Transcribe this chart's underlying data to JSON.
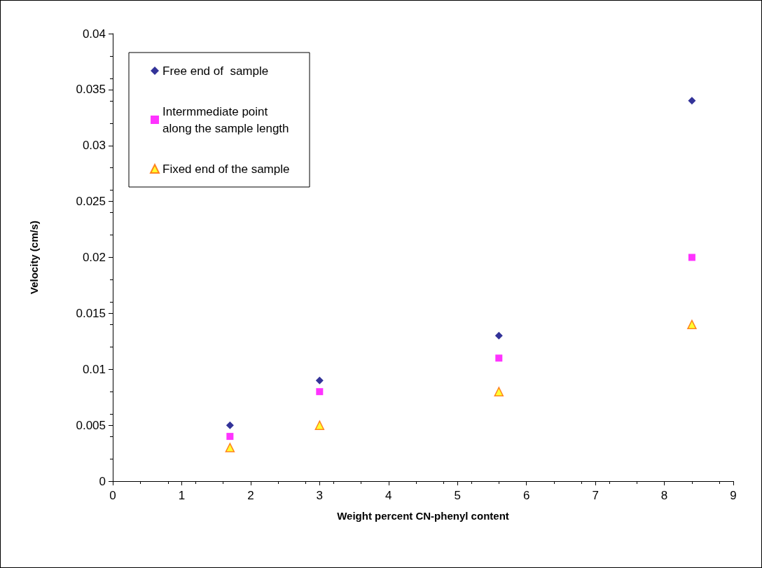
{
  "chart_data": {
    "type": "scatter",
    "xlabel": "Weight percent CN-phenyl content",
    "ylabel": "Velocity (cm/s)",
    "x": [
      1.7,
      3,
      5.6,
      8.4
    ],
    "series": [
      {
        "name": "Free end of  sample",
        "color": "#000080",
        "marker": "diamond",
        "values": [
          0.005,
          0.009,
          0.013,
          0.034
        ]
      },
      {
        "name": "Intermmediate point along the sample length",
        "color": "#ff00ff",
        "marker": "square",
        "values": [
          0.004,
          0.008,
          0.011,
          0.02
        ]
      },
      {
        "name": "Fixed end of the sample",
        "color": "#ffff00",
        "marker": "triangle",
        "values": [
          0.003,
          0.005,
          0.008,
          0.014
        ]
      }
    ],
    "xlim": [
      0,
      9
    ],
    "xticks": [
      0,
      1,
      2,
      3,
      4,
      5,
      6,
      7,
      8,
      9
    ],
    "ylim": [
      0,
      0.04
    ],
    "yticks": [
      0,
      0.005,
      0.01,
      0.015,
      0.02,
      0.025,
      0.03,
      0.035,
      0.04
    ],
    "grid": false,
    "legend": "top left"
  }
}
